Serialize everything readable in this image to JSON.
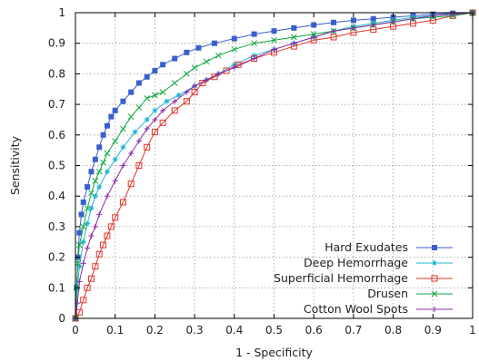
{
  "chart_data": {
    "type": "line",
    "title": "",
    "xlabel": "1 - Specificity",
    "ylabel": "Sensitivity",
    "xlim": [
      0,
      1
    ],
    "ylim": [
      0,
      1
    ],
    "xticks": [
      "0",
      "0.1",
      "0.2",
      "0.3",
      "0.4",
      "0.5",
      "0.6",
      "0.7",
      "0.8",
      "0.9",
      "1"
    ],
    "yticks": [
      "0",
      "0.1",
      "0.2",
      "0.3",
      "0.4",
      "0.5",
      "0.6",
      "0.7",
      "0.8",
      "0.9",
      "1"
    ],
    "grid": true,
    "legend_position": "bottom-right",
    "series": [
      {
        "name": "Hard Exudates",
        "color": "#3a5fcd",
        "marker": "filled-square",
        "points": [
          [
            0,
            0
          ],
          [
            0.003,
            0.1
          ],
          [
            0.006,
            0.2
          ],
          [
            0.01,
            0.28
          ],
          [
            0.015,
            0.34
          ],
          [
            0.02,
            0.38
          ],
          [
            0.03,
            0.43
          ],
          [
            0.04,
            0.48
          ],
          [
            0.05,
            0.52
          ],
          [
            0.06,
            0.56
          ],
          [
            0.07,
            0.6
          ],
          [
            0.08,
            0.63
          ],
          [
            0.09,
            0.66
          ],
          [
            0.1,
            0.68
          ],
          [
            0.12,
            0.71
          ],
          [
            0.14,
            0.74
          ],
          [
            0.16,
            0.77
          ],
          [
            0.18,
            0.79
          ],
          [
            0.2,
            0.81
          ],
          [
            0.22,
            0.83
          ],
          [
            0.25,
            0.85
          ],
          [
            0.28,
            0.87
          ],
          [
            0.31,
            0.885
          ],
          [
            0.35,
            0.9
          ],
          [
            0.4,
            0.915
          ],
          [
            0.45,
            0.93
          ],
          [
            0.5,
            0.94
          ],
          [
            0.55,
            0.95
          ],
          [
            0.6,
            0.96
          ],
          [
            0.65,
            0.968
          ],
          [
            0.7,
            0.975
          ],
          [
            0.75,
            0.98
          ],
          [
            0.8,
            0.985
          ],
          [
            0.85,
            0.99
          ],
          [
            0.9,
            0.995
          ],
          [
            0.95,
            0.998
          ],
          [
            1,
            1
          ]
        ]
      },
      {
        "name": "Deep Hemorrhage",
        "color": "#22b5d8",
        "marker": "star",
        "points": [
          [
            0,
            0
          ],
          [
            0.005,
            0.1
          ],
          [
            0.01,
            0.17
          ],
          [
            0.02,
            0.25
          ],
          [
            0.03,
            0.31
          ],
          [
            0.04,
            0.36
          ],
          [
            0.05,
            0.4
          ],
          [
            0.06,
            0.43
          ],
          [
            0.08,
            0.48
          ],
          [
            0.1,
            0.52
          ],
          [
            0.12,
            0.56
          ],
          [
            0.15,
            0.61
          ],
          [
            0.18,
            0.65
          ],
          [
            0.2,
            0.68
          ],
          [
            0.23,
            0.71
          ],
          [
            0.26,
            0.73
          ],
          [
            0.3,
            0.76
          ],
          [
            0.33,
            0.78
          ],
          [
            0.36,
            0.8
          ],
          [
            0.4,
            0.83
          ],
          [
            0.45,
            0.86
          ],
          [
            0.5,
            0.88
          ],
          [
            0.55,
            0.9
          ],
          [
            0.6,
            0.92
          ],
          [
            0.65,
            0.94
          ],
          [
            0.7,
            0.955
          ],
          [
            0.75,
            0.965
          ],
          [
            0.8,
            0.975
          ],
          [
            0.85,
            0.985
          ],
          [
            0.9,
            0.99
          ],
          [
            0.95,
            0.995
          ],
          [
            1,
            1
          ]
        ]
      },
      {
        "name": "Superficial Hemorrhage",
        "color": "#e0342a",
        "marker": "open-square",
        "points": [
          [
            0,
            0
          ],
          [
            0.01,
            0.02
          ],
          [
            0.02,
            0.06
          ],
          [
            0.03,
            0.1
          ],
          [
            0.04,
            0.13
          ],
          [
            0.05,
            0.17
          ],
          [
            0.06,
            0.21
          ],
          [
            0.07,
            0.24
          ],
          [
            0.08,
            0.27
          ],
          [
            0.09,
            0.3
          ],
          [
            0.1,
            0.33
          ],
          [
            0.12,
            0.38
          ],
          [
            0.14,
            0.44
          ],
          [
            0.16,
            0.5
          ],
          [
            0.18,
            0.56
          ],
          [
            0.2,
            0.61
          ],
          [
            0.22,
            0.64
          ],
          [
            0.25,
            0.68
          ],
          [
            0.28,
            0.71
          ],
          [
            0.3,
            0.74
          ],
          [
            0.32,
            0.77
          ],
          [
            0.35,
            0.79
          ],
          [
            0.38,
            0.81
          ],
          [
            0.41,
            0.83
          ],
          [
            0.45,
            0.85
          ],
          [
            0.5,
            0.87
          ],
          [
            0.55,
            0.89
          ],
          [
            0.6,
            0.91
          ],
          [
            0.65,
            0.92
          ],
          [
            0.7,
            0.935
          ],
          [
            0.75,
            0.945
          ],
          [
            0.8,
            0.955
          ],
          [
            0.85,
            0.965
          ],
          [
            0.9,
            0.975
          ],
          [
            0.95,
            0.99
          ],
          [
            1,
            1
          ]
        ]
      },
      {
        "name": "Drusen",
        "color": "#0fa840",
        "marker": "x",
        "points": [
          [
            0,
            0
          ],
          [
            0.003,
            0.1
          ],
          [
            0.006,
            0.18
          ],
          [
            0.01,
            0.24
          ],
          [
            0.02,
            0.3
          ],
          [
            0.03,
            0.36
          ],
          [
            0.04,
            0.41
          ],
          [
            0.05,
            0.45
          ],
          [
            0.06,
            0.48
          ],
          [
            0.07,
            0.51
          ],
          [
            0.08,
            0.54
          ],
          [
            0.1,
            0.58
          ],
          [
            0.12,
            0.62
          ],
          [
            0.14,
            0.66
          ],
          [
            0.16,
            0.69
          ],
          [
            0.18,
            0.72
          ],
          [
            0.2,
            0.73
          ],
          [
            0.22,
            0.74
          ],
          [
            0.25,
            0.77
          ],
          [
            0.28,
            0.8
          ],
          [
            0.3,
            0.82
          ],
          [
            0.33,
            0.84
          ],
          [
            0.36,
            0.86
          ],
          [
            0.4,
            0.88
          ],
          [
            0.45,
            0.9
          ],
          [
            0.5,
            0.91
          ],
          [
            0.55,
            0.92
          ],
          [
            0.6,
            0.93
          ],
          [
            0.65,
            0.94
          ],
          [
            0.7,
            0.95
          ],
          [
            0.75,
            0.96
          ],
          [
            0.8,
            0.97
          ],
          [
            0.85,
            0.98
          ],
          [
            0.9,
            0.985
          ],
          [
            0.95,
            0.99
          ],
          [
            1,
            1
          ]
        ]
      },
      {
        "name": "Cotton Wool Spots",
        "color": "#8a2aa8",
        "marker": "plus",
        "points": [
          [
            0,
            0
          ],
          [
            0.005,
            0.05
          ],
          [
            0.01,
            0.12
          ],
          [
            0.02,
            0.18
          ],
          [
            0.03,
            0.23
          ],
          [
            0.04,
            0.27
          ],
          [
            0.05,
            0.3
          ],
          [
            0.06,
            0.34
          ],
          [
            0.08,
            0.4
          ],
          [
            0.1,
            0.45
          ],
          [
            0.12,
            0.5
          ],
          [
            0.14,
            0.54
          ],
          [
            0.16,
            0.58
          ],
          [
            0.18,
            0.62
          ],
          [
            0.2,
            0.65
          ],
          [
            0.22,
            0.68
          ],
          [
            0.25,
            0.71
          ],
          [
            0.28,
            0.74
          ],
          [
            0.3,
            0.76
          ],
          [
            0.33,
            0.78
          ],
          [
            0.36,
            0.8
          ],
          [
            0.4,
            0.82
          ],
          [
            0.45,
            0.85
          ],
          [
            0.5,
            0.88
          ],
          [
            0.55,
            0.9
          ],
          [
            0.6,
            0.92
          ],
          [
            0.65,
            0.94
          ],
          [
            0.7,
            0.95
          ],
          [
            0.75,
            0.96
          ],
          [
            0.8,
            0.97
          ],
          [
            0.85,
            0.98
          ],
          [
            0.9,
            0.99
          ],
          [
            0.95,
            0.995
          ],
          [
            1,
            1
          ]
        ]
      }
    ]
  }
}
